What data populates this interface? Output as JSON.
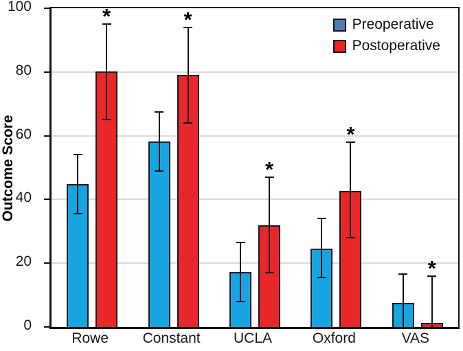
{
  "chart_data": {
    "type": "bar",
    "title": "",
    "xlabel": "",
    "ylabel": "Outcome Score",
    "ylim": [
      0,
      100
    ],
    "yticks": [
      0,
      20,
      40,
      60,
      80,
      100
    ],
    "gridlines": [
      20,
      40,
      60,
      80
    ],
    "grid_color": "#d9d9d9",
    "categories": [
      "Rowe",
      "Constant",
      "UCLA",
      "Oxford",
      "VAS"
    ],
    "legend_position": "top-right",
    "significance_marker": "*",
    "series": [
      {
        "name": "Preoperative",
        "bar_color": "#16a5e1",
        "legend_color": "#4d7ebb",
        "values": [
          44.8,
          58.3,
          17.2,
          24.6,
          7.6
        ],
        "err_high": [
          54,
          67.5,
          26.5,
          34,
          16.6
        ],
        "err_low": [
          35.5,
          49,
          8,
          15.5,
          0
        ],
        "err_low_cap": [
          true,
          true,
          true,
          true,
          false
        ],
        "significant": [
          false,
          false,
          false,
          false,
          false
        ]
      },
      {
        "name": "Postoperative",
        "bar_color": "#e8272b",
        "legend_color": "#ee2124",
        "values": [
          80.1,
          79.2,
          31.8,
          42.6,
          1.2
        ],
        "err_high": [
          95,
          94,
          47,
          58,
          16
        ],
        "err_low": [
          65,
          64,
          17,
          28,
          0
        ],
        "err_low_cap": [
          true,
          true,
          true,
          true,
          false
        ],
        "significant": [
          true,
          true,
          true,
          true,
          true
        ]
      }
    ]
  }
}
